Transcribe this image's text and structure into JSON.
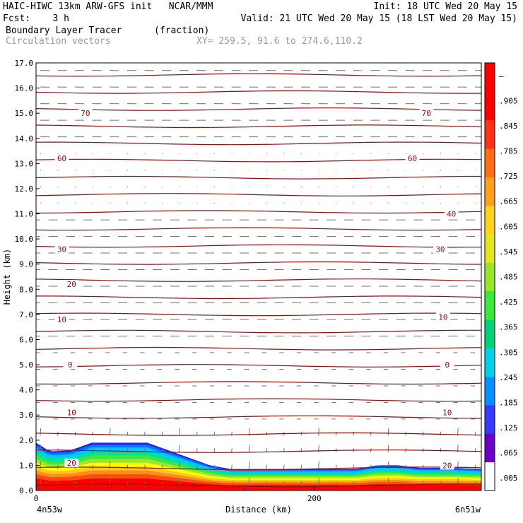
{
  "header": {
    "line1_left": "HAIC-HIWC 13km ARW-GFS init   NCAR/MMM",
    "line1_right": "Init: 18 UTC Wed 20 May 15",
    "line2_left": "Fcst:    3 h",
    "line2_right": "Valid: 21 UTC Wed 20 May 15 (18 LST Wed 20 May 15)",
    "field": "Boundary Layer Tracer",
    "units": "(fraction)",
    "vectors": "Circulation vectors",
    "xy": "XY= 259.5, 91.6 to 274.6,110.2"
  },
  "colors": {
    "contour": "#8b1010",
    "vector": "#707070",
    "colorbar": [
      "#ffffff",
      "#6a00c8",
      "#3a3aff",
      "#0090ff",
      "#00d0e8",
      "#00d27a",
      "#3ee63e",
      "#9ae62a",
      "#e6e61e",
      "#ffd21e",
      "#ffa01e",
      "#ff6e14",
      "#ff3214",
      "#ff0000",
      "#ff0000"
    ]
  },
  "chart_data": {
    "type": "cross-section",
    "xlabel": "Distance (km)",
    "ylabel": "Height (km)",
    "xlim": [
      0,
      320
    ],
    "ylim": [
      0,
      17
    ],
    "x_ticks": [
      "0",
      "200"
    ],
    "y_ticks": [
      "0.0",
      "1.0",
      "2.0",
      "3.0",
      "4.0",
      "5.0",
      "6.0",
      "7.0",
      "8.0",
      "9.0",
      "10.0",
      "11.0",
      "12.0",
      "13.0",
      "14.0",
      "15.0",
      "16.0",
      "17.0"
    ],
    "left_endpoint": "4n53w",
    "right_endpoint": "6n51w",
    "colorbar_labels": [
      ".005",
      ".065",
      ".125",
      ".185",
      ".245",
      ".305",
      ".365",
      ".425",
      ".485",
      ".545",
      ".605",
      ".665",
      ".725",
      ".785",
      ".845",
      ".905",
      "–"
    ],
    "contour_labels": [
      {
        "text": "70",
        "x": 35,
        "y": 15.0
      },
      {
        "text": "70",
        "x": 280,
        "y": 15.0
      },
      {
        "text": "60",
        "x": 18,
        "y": 13.2
      },
      {
        "text": "60",
        "x": 270,
        "y": 13.2
      },
      {
        "text": "40",
        "x": 298,
        "y": 11.0
      },
      {
        "text": "30",
        "x": 18,
        "y": 9.6
      },
      {
        "text": "30",
        "x": 290,
        "y": 9.6
      },
      {
        "text": "20",
        "x": 25,
        "y": 8.2
      },
      {
        "text": "10",
        "x": 18,
        "y": 6.8
      },
      {
        "text": "10",
        "x": 292,
        "y": 6.9
      },
      {
        "text": "0",
        "x": 24,
        "y": 5.0
      },
      {
        "text": "0",
        "x": 295,
        "y": 5.0
      },
      {
        "text": "10",
        "x": 25,
        "y": 3.1
      },
      {
        "text": "10",
        "x": 295,
        "y": 3.1
      },
      {
        "text": "20",
        "x": 25,
        "y": 1.1
      },
      {
        "text": "20",
        "x": 295,
        "y": 1.0
      }
    ],
    "bl_top": [
      [
        0,
        1.9
      ],
      [
        10,
        1.55
      ],
      [
        25,
        1.6
      ],
      [
        40,
        1.9
      ],
      [
        80,
        1.9
      ],
      [
        95,
        1.6
      ],
      [
        115,
        1.2
      ],
      [
        125,
        1.0
      ],
      [
        140,
        0.85
      ],
      [
        200,
        0.85
      ],
      [
        230,
        0.85
      ],
      [
        245,
        1.0
      ],
      [
        260,
        1.0
      ],
      [
        275,
        0.9
      ],
      [
        300,
        0.9
      ],
      [
        320,
        0.85
      ]
    ]
  }
}
